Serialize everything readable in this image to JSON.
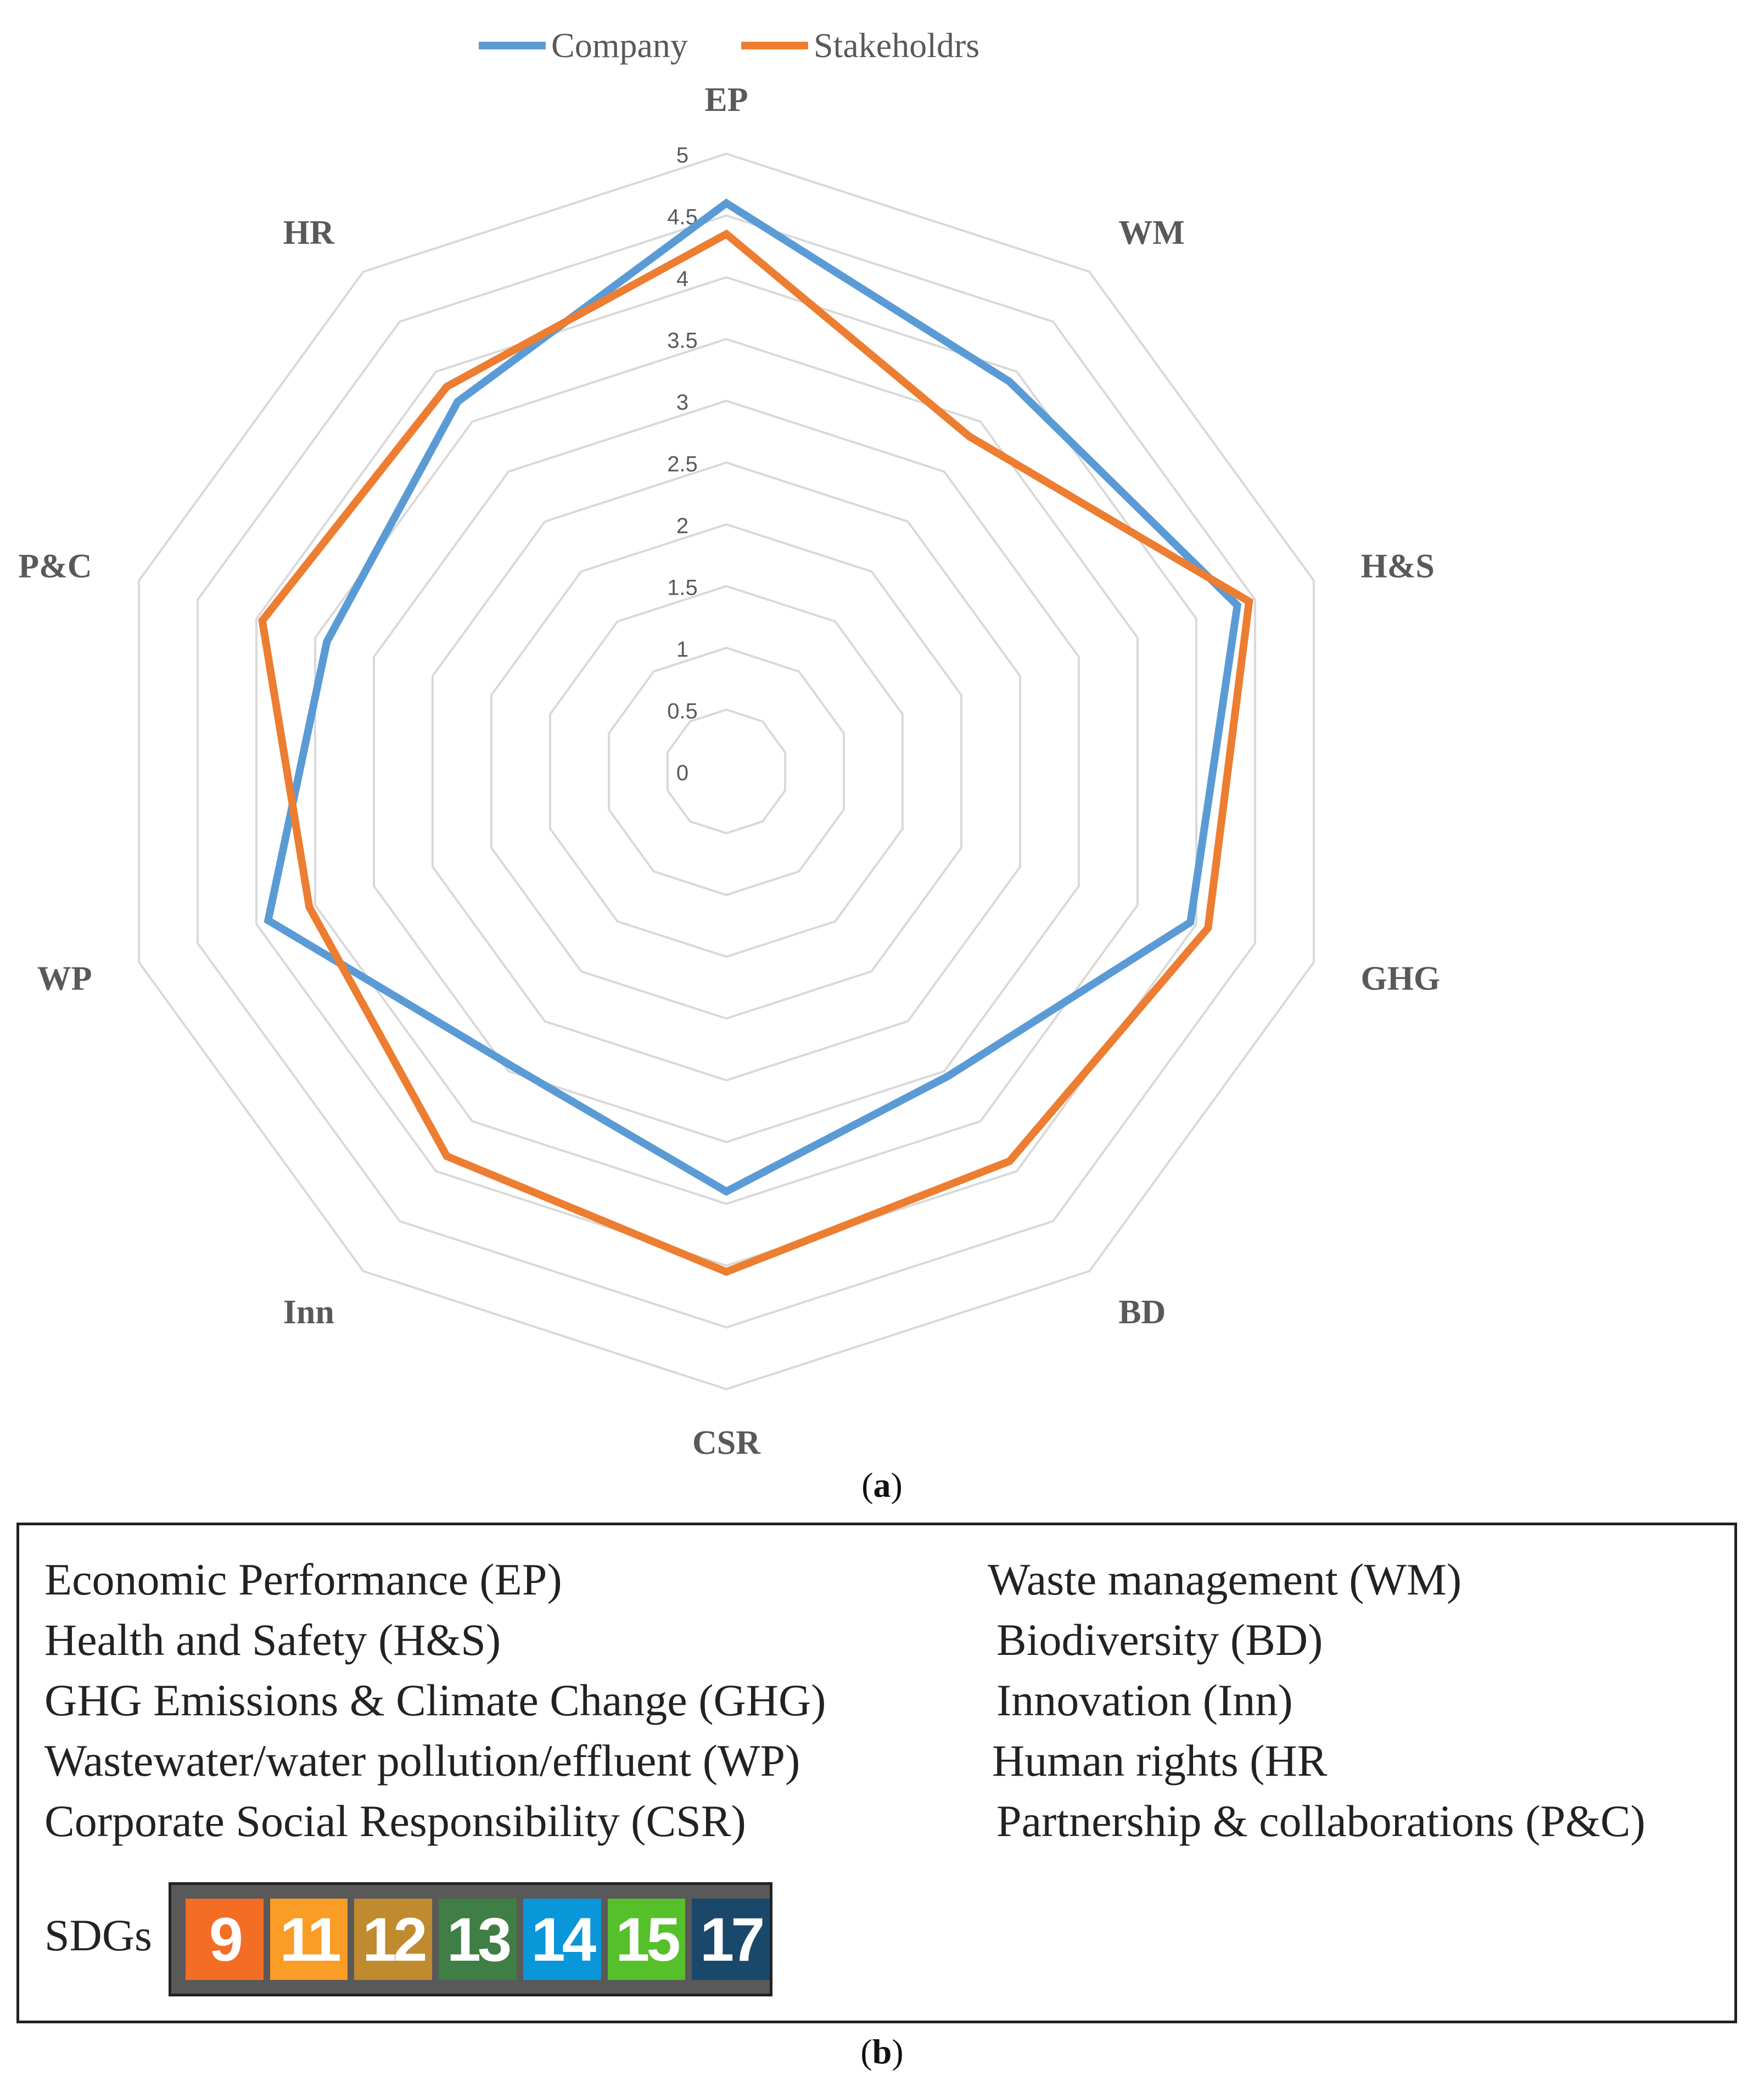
{
  "chart_data": {
    "type": "radar",
    "title": "",
    "axes": [
      "EP",
      "WM",
      "H&S",
      "GHG",
      "BD",
      "CSR",
      "Inn",
      "WP",
      "P&C",
      "HR"
    ],
    "rlim": [
      0,
      5
    ],
    "ticks": [
      "0",
      "0.5",
      "1",
      "1.5",
      "2",
      "2.5",
      "3",
      "3.5",
      "4",
      "4.5",
      "5"
    ],
    "grid": true,
    "legend_position": "top",
    "series": [
      {
        "name": "Company",
        "color": "#5B9BD5",
        "values": [
          4.6,
          3.9,
          4.35,
          3.95,
          3.05,
          3.4,
          2.95,
          3.9,
          3.4,
          3.7
        ]
      },
      {
        "name": "Stakeholdrs",
        "color": "#ED7D31",
        "values": [
          4.35,
          3.35,
          4.45,
          4.1,
          3.9,
          4.05,
          3.85,
          3.55,
          3.95,
          3.85
        ]
      }
    ]
  },
  "caption_a": "a",
  "caption_b": "b",
  "panel_b": {
    "left_items": [
      "Economic Performance (EP)",
      "Health and Safety (H&S)",
      "GHG Emissions & Climate Change (GHG)",
      "Wastewater/water pollution/effluent (WP)",
      "Corporate Social Responsibility (CSR)"
    ],
    "right_items": [
      "Waste management (WM)",
      "Biodiversity (BD)",
      "Innovation (Inn)",
      "Human rights (HR",
      "Partnership & collaborations (P&C)"
    ],
    "sdg_label": "SDGs",
    "sdgs": [
      {
        "number": "9",
        "color": "#F36D25"
      },
      {
        "number": "11",
        "color": "#F99D26"
      },
      {
        "number": "12",
        "color": "#BF8B2E"
      },
      {
        "number": "13",
        "color": "#3F7E44"
      },
      {
        "number": "14",
        "color": "#0A97D9"
      },
      {
        "number": "15",
        "color": "#56C02B"
      },
      {
        "number": "17",
        "color": "#19486A"
      }
    ]
  }
}
